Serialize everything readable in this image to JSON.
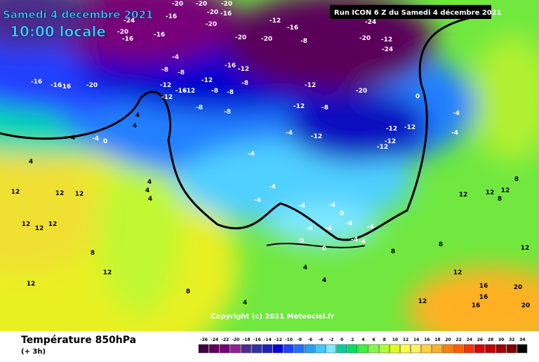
{
  "header": {
    "title": "Samedi 4 décembre 2021",
    "time": "10:00 locale",
    "run": "Run ICON 6 Z du Samedi 4 décembre 2021"
  },
  "copyright": "Copyright (c) 2021 Meteociel.fr",
  "footer": {
    "title": "Température 850hPa",
    "subtitle": "(+ 3h)"
  },
  "legend": {
    "ticks": [
      -26,
      -24,
      -22,
      -20,
      -18,
      -16,
      -14,
      -12,
      -10,
      -8,
      -6,
      -4,
      -2,
      0,
      2,
      4,
      6,
      8,
      10,
      12,
      14,
      16,
      18,
      20,
      22,
      24,
      26,
      28,
      30,
      32,
      34
    ],
    "colors": [
      "#3c0040",
      "#5a005a",
      "#780078",
      "#902090",
      "#4b2a8c",
      "#3030a0",
      "#2020c0",
      "#0000e0",
      "#2040ff",
      "#2070ff",
      "#20a0ff",
      "#40c8ff",
      "#80e8ff",
      "#00d0a0",
      "#00e060",
      "#40f040",
      "#80ff40",
      "#b0ff30",
      "#e0ff20",
      "#ffff40",
      "#fff060",
      "#ffd040",
      "#ffb020",
      "#ff8000",
      "#ff6000",
      "#ff3000",
      "#e00000",
      "#c00000",
      "#a00000",
      "#800000",
      "#000000"
    ]
  },
  "map_labels": [
    -24,
    -20,
    -16,
    -20,
    -16,
    -16,
    -20,
    -20,
    -16,
    -20,
    -20,
    -20,
    -20,
    -12,
    -16,
    -8,
    -24,
    -20,
    -12,
    -24,
    -4,
    -8,
    -8,
    -16,
    -12,
    -12,
    -8,
    -8,
    -8,
    -12,
    -16,
    -12,
    -12,
    -8,
    -8,
    -12,
    -12,
    -8,
    -20,
    -12,
    -4,
    -12,
    -12,
    -12,
    -12,
    0,
    -4,
    -4,
    -16,
    -16,
    -16,
    -20,
    4,
    4,
    -4,
    4,
    0,
    4,
    12,
    12,
    12,
    4,
    4,
    4,
    -4,
    -4,
    -4,
    -4,
    -4,
    0,
    -4,
    -4,
    -4,
    -4,
    -4,
    0,
    0,
    -4,
    12,
    12,
    12,
    8,
    12,
    12,
    8,
    4,
    4,
    4,
    12,
    12,
    12,
    8,
    8,
    12,
    12,
    16,
    16,
    16,
    20,
    20,
    12,
    8,
    8
  ]
}
